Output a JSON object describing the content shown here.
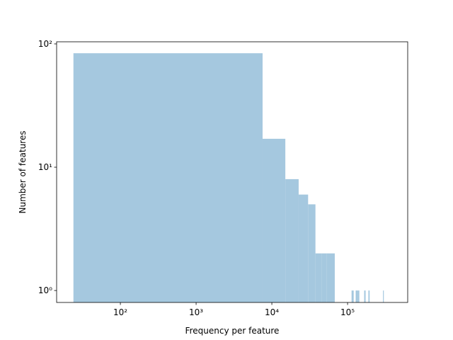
{
  "chart_data": {
    "type": "histogram",
    "log_x": true,
    "log_y": true,
    "xlabel": "Frequency per feature",
    "ylabel": "Number of features",
    "color": "#a5c8df",
    "bins": [
      24,
      7548,
      15072,
      22596,
      30120,
      37644,
      45168,
      52692,
      60216,
      67740,
      75264,
      82788,
      90312,
      97836,
      105360,
      112884,
      120408,
      127932,
      135456,
      142980,
      150504,
      158028,
      165552,
      173076,
      180600,
      188124,
      195648,
      203172,
      210696,
      218220,
      225744,
      233268,
      240792,
      248316,
      255840,
      263364,
      270888,
      278412,
      285936,
      293460,
      300984
    ],
    "values": [
      84,
      17,
      8,
      6,
      5,
      2,
      2,
      2,
      2,
      0,
      0,
      0,
      0,
      0,
      0,
      1,
      0,
      1,
      1,
      0,
      0,
      0,
      1,
      0,
      0,
      1,
      0,
      0,
      0,
      0,
      0,
      0,
      0,
      0,
      0,
      0,
      0,
      0,
      0,
      1
    ],
    "xlim": [
      14.4,
      622000
    ],
    "ylim": [
      0.8,
      104
    ],
    "xticks": [
      {
        "value": 100,
        "label": "10²"
      },
      {
        "value": 1000,
        "label": "10³"
      },
      {
        "value": 10000,
        "label": "10⁴"
      },
      {
        "value": 100000,
        "label": "10⁵"
      }
    ],
    "yticks": [
      {
        "value": 1,
        "label": "10⁰"
      },
      {
        "value": 10,
        "label": "10¹"
      },
      {
        "value": 100,
        "label": "10²"
      }
    ]
  }
}
